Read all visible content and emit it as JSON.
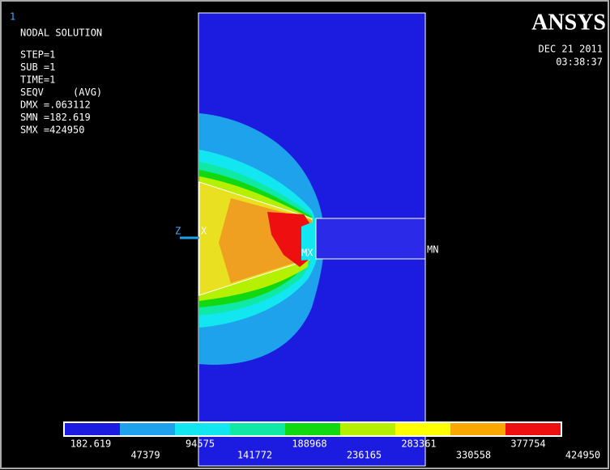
{
  "window_number": "1",
  "info": {
    "title": "NODAL SOLUTION",
    "lines": [
      "STEP=1",
      "SUB =1",
      "TIME=1",
      "SEQV     (AVG)",
      "DMX =.063112",
      "SMN =182.619",
      "SMX =424950"
    ]
  },
  "logo": "ANSYS",
  "date": "DEC 21 2011",
  "time": "03:38:37",
  "markers": {
    "z_axis": "Z",
    "x_axis": "X",
    "max": "MX",
    "min": "MN"
  },
  "legend": {
    "colors": [
      "#1c1ce0",
      "#1fa2ec",
      "#12e6f0",
      "#10e8a6",
      "#12d812",
      "#b4f000",
      "#ffff00",
      "#f8a800",
      "#ee1010"
    ],
    "labels": [
      "182.619",
      "47379",
      "94575",
      "141772",
      "188968",
      "236165",
      "283361",
      "330558",
      "377754",
      "424950"
    ]
  }
}
